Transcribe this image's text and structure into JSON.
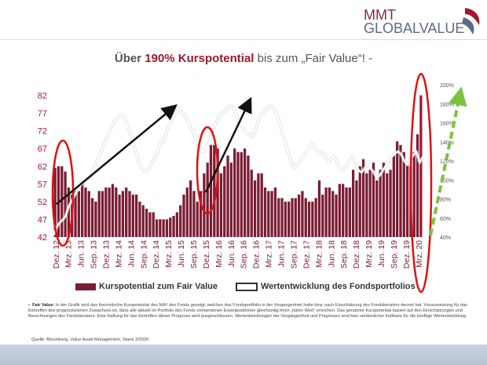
{
  "logo": {
    "line1": "MMT",
    "line2": "GLOBALVALUE"
  },
  "title": {
    "pre": "Über ",
    "highlight": "190% Kurspotential",
    "post": " bis zum „Fair Value“! -"
  },
  "legend": {
    "bars": "Kurspotential zum Fair Value",
    "line": "Wertentwicklung des Fondsportfolios"
  },
  "footnote": {
    "label": "Fair Value:",
    "text": " In der Grafik wird das theoretische Kurspotential des NAV des Fonds gezeigt, welches das Fondsportfolio in der Vergangenheit hatte bzw. nach Einschätzung des Fondsberaters derzeit hat. Voraussetzung für das Eintreffen des prognostizierten Zuwachses ist, dass alle aktuell im Portfolio des Fonds vorhandenen Einzelpositionen gleichzeitig ihren „fairen Wert“ erreichen. Das genannte Kurspotential basiert auf den Einschätzungen und Berechnungen des Fondsberaters. Eine Haftung für das Eintreffen dieser Prognose wird ausgeschlossen. Wertentwicklungen der Vergangenheit und Prognosen sind kein verlässlicher Indikator für die künftige Wertentwicklung."
  },
  "source": "Quelle: Bloomberg, Value Asset Management, Stand 3/2020",
  "colors": {
    "bar": "#7a1d33",
    "bar_highlight": "#a0182e",
    "line": "#ffffff",
    "ellipse": "#e01010",
    "arrow": "#111111",
    "forecast_arrow": "#7cc242"
  },
  "chart_data": {
    "type": "bar",
    "x_labels": [
      "Dez. 12",
      "Mrz. 13",
      "Jun. 13",
      "Sep. 13",
      "Dez. 13",
      "Mrz. 14",
      "Jun. 14",
      "Sep. 14",
      "Dez. 14",
      "Mrz. 15",
      "Jun. 15",
      "Sep. 15",
      "Dez. 15",
      "Mrz. 16",
      "Jun. 16",
      "Sep. 16",
      "Dez. 16",
      "Mrz. 17",
      "Jun. 17",
      "Sep. 17",
      "Dez. 17",
      "Mrz. 18",
      "Jun. 18",
      "Sep. 18",
      "Dez. 18",
      "Mrz. 19",
      "Jun. 19",
      "Sep. 19",
      "Dez. 19",
      "Mrz. 20"
    ],
    "left_ticks": [
      42,
      47,
      52,
      57,
      62,
      67,
      72,
      77,
      82
    ],
    "right_ticks": [
      "40%",
      "60%",
      "80%",
      "100%",
      "120%",
      "140%",
      "160%",
      "180%",
      "200%"
    ],
    "ylim": [
      42,
      85
    ],
    "y2lim": [
      40,
      200
    ],
    "series": [
      {
        "name": "Kurspotential zum Fair Value",
        "type": "bar",
        "values": [
          61.5,
          62,
          62,
          60.5,
          56,
          54,
          55,
          55,
          57,
          56,
          55,
          53,
          52,
          55,
          55,
          56,
          56,
          57,
          56,
          54,
          55,
          56,
          55,
          54,
          54,
          52,
          51,
          50,
          49,
          49,
          47,
          47,
          47,
          47,
          47.5,
          48,
          49,
          51,
          54,
          56,
          58,
          55,
          52,
          55,
          60,
          63,
          68,
          68,
          67,
          60,
          62,
          65,
          63,
          67,
          66,
          66,
          67,
          65,
          61,
          58,
          60,
          60,
          56,
          55,
          55,
          56,
          53,
          53,
          52,
          52,
          53,
          53,
          54,
          55,
          53,
          52,
          52,
          53,
          58,
          54,
          56,
          56,
          55,
          54,
          57,
          57,
          56,
          56,
          61,
          58,
          62,
          64,
          60,
          61,
          63,
          58,
          61,
          63,
          60,
          61,
          65,
          69,
          68,
          66,
          63,
          62,
          66,
          71,
          82
        ]
      },
      {
        "name": "Wertentwicklung des Fondsportfolios",
        "type": "line",
        "axis": "right",
        "values": [
          42,
          50,
          55,
          58,
          62,
          72,
          78,
          84,
          90,
          95,
          98,
          100,
          103,
          110,
          118,
          125,
          132,
          140,
          148,
          155,
          162,
          165,
          168,
          168,
          160,
          150,
          140,
          130,
          118,
          112,
          108,
          110,
          116,
          122,
          128,
          138,
          140,
          150,
          158,
          165,
          170,
          175,
          172,
          168,
          162,
          155,
          148,
          140,
          135,
          130,
          132,
          140,
          150,
          158,
          165,
          170,
          172,
          175,
          178,
          176,
          168,
          160,
          155,
          150,
          148,
          145,
          150,
          160,
          168,
          172,
          175,
          178,
          176,
          170,
          162,
          150,
          140,
          128,
          120,
          112,
          116,
          120,
          125,
          130,
          135,
          138,
          132,
          128,
          130,
          126,
          118,
          122,
          125,
          118,
          112,
          110,
          115,
          120,
          125,
          118,
          110,
          108,
          112,
          118,
          112,
          108,
          102,
          105,
          110,
          115,
          120,
          125,
          128,
          130,
          127,
          120,
          116,
          122,
          126,
          130,
          118,
          124
        ]
      }
    ]
  }
}
